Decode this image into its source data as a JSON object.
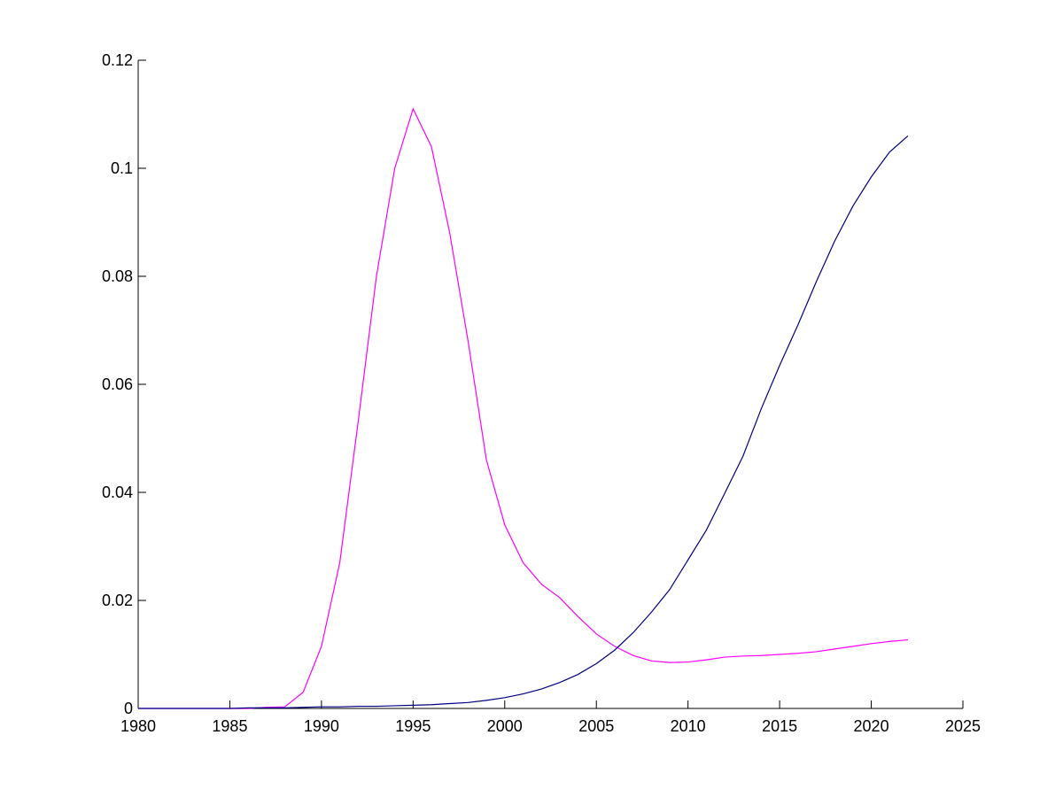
{
  "chart_data": {
    "type": "line",
    "x": [
      1980,
      1981,
      1982,
      1983,
      1984,
      1985,
      1986,
      1987,
      1988,
      1989,
      1990,
      1991,
      1992,
      1993,
      1994,
      1995,
      1996,
      1997,
      1998,
      1999,
      2000,
      2001,
      2002,
      2003,
      2004,
      2005,
      2006,
      2007,
      2008,
      2009,
      2010,
      2011,
      2012,
      2013,
      2014,
      2015,
      2016,
      2017,
      2018,
      2019,
      2020,
      2021,
      2022
    ],
    "series": [
      {
        "color": "#ff00ff",
        "values": [
          0,
          0,
          0,
          0,
          0,
          0,
          0,
          0.0002,
          0.0003,
          0.003,
          0.0115,
          0.027,
          0.053,
          0.08,
          0.1,
          0.111,
          0.104,
          0.088,
          0.068,
          0.046,
          0.034,
          0.027,
          0.023,
          0.0205,
          0.017,
          0.0138,
          0.0115,
          0.0098,
          0.0088,
          0.0085,
          0.0086,
          0.009,
          0.0095,
          0.0097,
          0.0098,
          0.01,
          0.0102,
          0.0105,
          0.011,
          0.0115,
          0.012,
          0.0124,
          0.0127
        ]
      },
      {
        "color": "#000080",
        "values": [
          0,
          0,
          0,
          0,
          0,
          0,
          0.0001,
          0.0001,
          0.0001,
          0.0002,
          0.0003,
          0.0003,
          0.0004,
          0.0004,
          0.0005,
          0.0006,
          0.0007,
          0.0009,
          0.0011,
          0.0015,
          0.002,
          0.0027,
          0.0036,
          0.0048,
          0.0063,
          0.0083,
          0.0108,
          0.014,
          0.0178,
          0.022,
          0.0275,
          0.033,
          0.0398,
          0.0467,
          0.0555,
          0.0635,
          0.071,
          0.079,
          0.0865,
          0.093,
          0.0984,
          0.103,
          0.106
        ]
      }
    ],
    "xlim": [
      1980,
      2025
    ],
    "xticks": [
      1980,
      1985,
      1990,
      1995,
      2000,
      2005,
      2010,
      2015,
      2020,
      2025
    ],
    "ylim": [
      0,
      0.12
    ],
    "yticks": [
      0,
      0.02,
      0.04,
      0.06,
      0.08,
      0.1,
      0.12
    ]
  }
}
